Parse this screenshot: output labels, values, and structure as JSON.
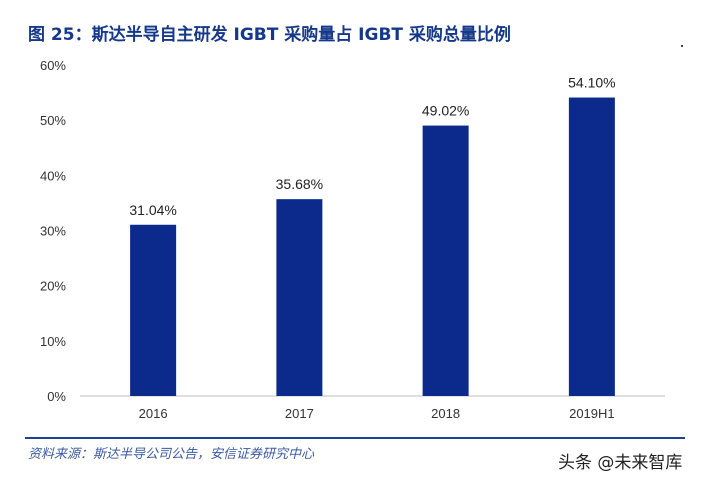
{
  "title": "图 25：斯达半导自主研发 IGBT 采购量占 IGBT 采购总量比例",
  "source": "资料来源：斯达半导公司公告，安信证券研究中心",
  "watermark": "头条 @未来智库",
  "chart_data": {
    "type": "bar",
    "categories": [
      "2016",
      "2017",
      "2018",
      "2019H1"
    ],
    "values": [
      31.04,
      35.68,
      49.02,
      54.1
    ],
    "data_labels": [
      "31.04%",
      "35.68%",
      "49.02%",
      "54.10%"
    ],
    "ylim": [
      0,
      60
    ],
    "yticks": [
      "0%",
      "10%",
      "20%",
      "30%",
      "40%",
      "50%",
      "60%"
    ],
    "grid": false,
    "bar_color": "#0b2a8c"
  }
}
